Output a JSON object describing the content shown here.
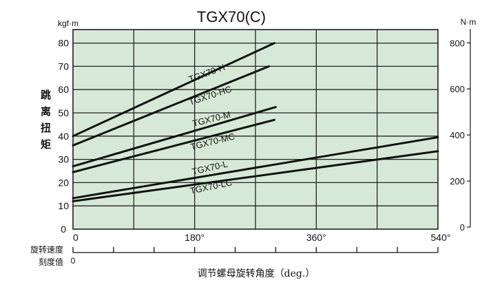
{
  "chart_data": {
    "type": "line",
    "title": "TGX70(C)",
    "ylabel": "跳离扭矩",
    "yunit_left": "kgf·m",
    "yunit_right": "N·m",
    "xlabel": "调节螺母旋转角度（deg.）",
    "secondary_x_label": [
      "旋转速度",
      "刻度值"
    ],
    "secondary_x_tick_label": "0",
    "xlim": [
      0,
      540
    ],
    "ylim": [
      0,
      85
    ],
    "grid": true,
    "background_color": "#d6e9d6",
    "line_color": "#111111",
    "x_ticks": [
      {
        "value": 0,
        "label": "0"
      },
      {
        "value": 180,
        "label": "180°"
      },
      {
        "value": 360,
        "label": "360°"
      },
      {
        "value": 540,
        "label": "540°"
      }
    ],
    "y_ticks_left": [
      "0",
      "10",
      "20",
      "30",
      "40",
      "50",
      "60",
      "70",
      "80"
    ],
    "y_ticks_right": [
      "0",
      "200",
      "400",
      "600",
      "800"
    ],
    "series": [
      {
        "name": "TGX70-H",
        "x": [
          0,
          298
        ],
        "y": [
          40,
          80
        ]
      },
      {
        "name": "TGX70-HC",
        "x": [
          0,
          290
        ],
        "y": [
          36,
          70
        ]
      },
      {
        "name": "TGX70-M",
        "x": [
          0,
          300
        ],
        "y": [
          27,
          52.5
        ]
      },
      {
        "name": "TGX70-MC",
        "x": [
          0,
          298
        ],
        "y": [
          24.5,
          47
        ]
      },
      {
        "name": "TGX70-L",
        "x": [
          0,
          540
        ],
        "y": [
          13.3,
          39.5
        ]
      },
      {
        "name": "TGX70-LC",
        "x": [
          0,
          540
        ],
        "y": [
          12,
          33.5
        ]
      }
    ]
  }
}
